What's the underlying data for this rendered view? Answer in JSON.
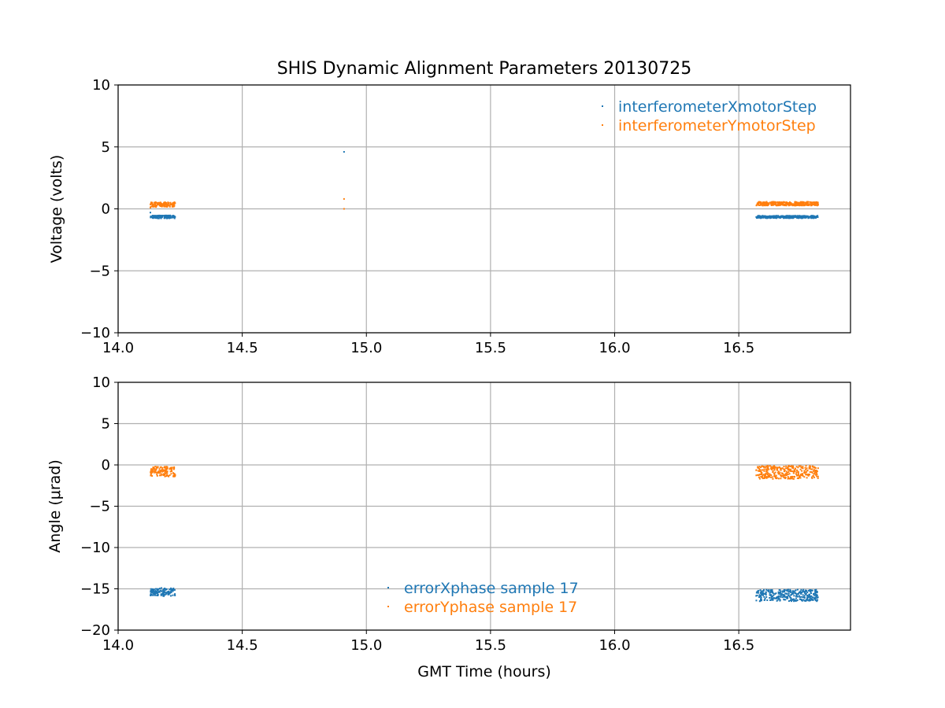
{
  "chart_data": [
    {
      "type": "scatter",
      "title": "SHIS Dynamic Alignment Parameters 20130725",
      "xlabel": "",
      "ylabel": "Voltage (volts)",
      "xlim": [
        14.0,
        16.95
      ],
      "ylim": [
        -10,
        10
      ],
      "xticks": [
        "14.0",
        "14.5",
        "15.0",
        "15.5",
        "16.0",
        "16.5"
      ],
      "yticks": [
        "10",
        "5",
        "0",
        "−5",
        "−10"
      ],
      "grid": true,
      "legend_position": "top-right",
      "series": [
        {
          "name": "interferometerXmotorStep",
          "color": "#1f77b4",
          "clusters": [
            {
              "x_start": 14.13,
              "x_end": 14.23,
              "y_center": -0.65,
              "y_spread": 0.12
            },
            {
              "x_start": 16.57,
              "x_end": 16.82,
              "y_center": -0.65,
              "y_spread": 0.1
            }
          ],
          "points": [
            {
              "x": 14.91,
              "y": 4.6
            },
            {
              "x": 14.13,
              "y": -0.3
            }
          ]
        },
        {
          "name": "interferometerYmotorStep",
          "color": "#ff7f0e",
          "clusters": [
            {
              "x_start": 14.13,
              "x_end": 14.23,
              "y_center": 0.35,
              "y_spread": 0.2
            },
            {
              "x_start": 16.57,
              "x_end": 16.82,
              "y_center": 0.42,
              "y_spread": 0.15
            }
          ],
          "points": [
            {
              "x": 14.91,
              "y": 0.8
            },
            {
              "x": 14.91,
              "y": 0.0
            },
            {
              "x": 14.13,
              "y": 0.1
            }
          ]
        }
      ]
    },
    {
      "type": "scatter",
      "title": "",
      "xlabel": "GMT Time (hours)",
      "ylabel": "Angle (μrad)",
      "xlim": [
        14.0,
        16.95
      ],
      "ylim": [
        -20,
        10
      ],
      "xticks": [
        "14.0",
        "14.5",
        "15.0",
        "15.5",
        "16.0",
        "16.5"
      ],
      "yticks": [
        "10",
        "5",
        "0",
        "−5",
        "−10",
        "−15",
        "−20"
      ],
      "grid": true,
      "legend_position": "lower-center",
      "series": [
        {
          "name": "errorXphase sample 17",
          "color": "#1f77b4",
          "clusters": [
            {
              "x_start": 14.13,
              "x_end": 14.23,
              "y_center": -15.4,
              "y_spread": 0.5
            },
            {
              "x_start": 16.57,
              "x_end": 16.82,
              "y_center": -15.8,
              "y_spread": 0.7
            }
          ],
          "points": []
        },
        {
          "name": "errorYphase sample 17",
          "color": "#ff7f0e",
          "clusters": [
            {
              "x_start": 14.13,
              "x_end": 14.23,
              "y_center": -0.8,
              "y_spread": 0.6
            },
            {
              "x_start": 16.57,
              "x_end": 16.82,
              "y_center": -0.9,
              "y_spread": 0.8
            }
          ],
          "points": []
        }
      ]
    }
  ]
}
